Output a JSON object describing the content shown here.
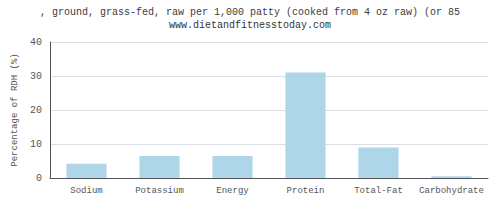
{
  "chart_data": {
    "type": "bar",
    "title": ", ground, grass-fed, raw per 1,000 patty (cooked from 4 oz raw) (or 85",
    "subtitle": "www.dietandfitnesstoday.com",
    "ylabel": "Percentage of RDH (%)",
    "categories": [
      "Sodium",
      "Potassium",
      "Energy",
      "Protein",
      "Total-Fat",
      "Carbohydrate"
    ],
    "values": [
      4.2,
      6.5,
      6.5,
      31.0,
      9.0,
      0.5
    ],
    "color": "#aed6e8",
    "ylim": [
      0,
      40
    ],
    "yticks": [
      0,
      10,
      20,
      30,
      40
    ],
    "grid": true
  }
}
